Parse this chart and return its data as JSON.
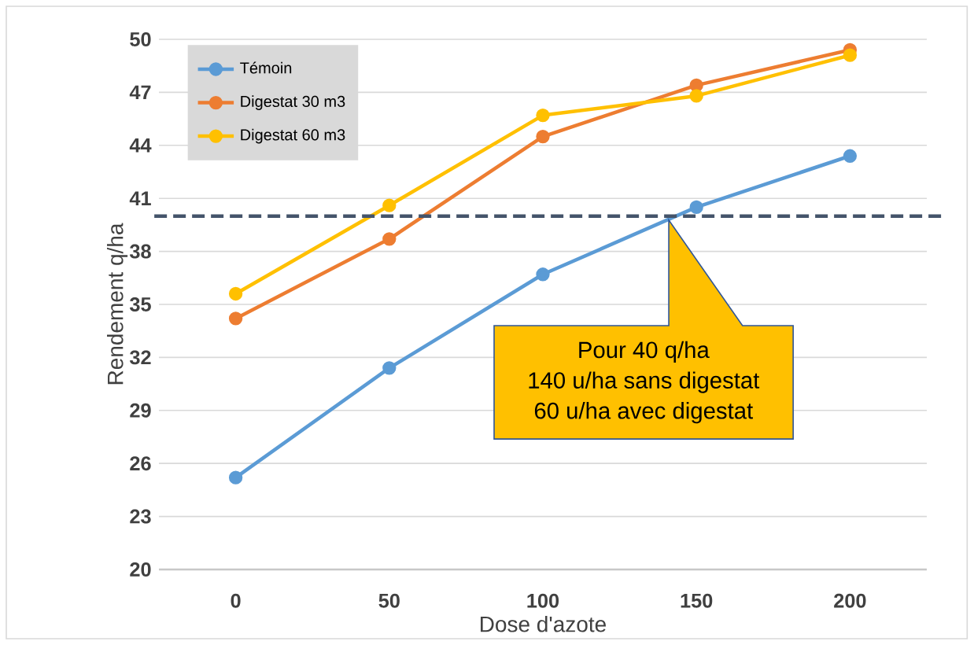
{
  "chart_data": {
    "type": "line",
    "xlabel": "Dose d'azote",
    "ylabel": "Rendement q/ha",
    "categories": [
      "0",
      "50",
      "100",
      "150",
      "200"
    ],
    "series": [
      {
        "name": "Témoin",
        "color": "#5b9bd5",
        "values": [
          25.2,
          31.4,
          36.7,
          40.5,
          43.4
        ]
      },
      {
        "name": "Digestat 30 m3",
        "color": "#ed7d31",
        "values": [
          34.2,
          38.7,
          44.5,
          47.4,
          49.4
        ]
      },
      {
        "name": "Digestat 60 m3",
        "color": "#ffc000",
        "values": [
          35.6,
          40.6,
          45.7,
          46.8,
          49.1
        ]
      }
    ],
    "ylim": [
      20,
      50
    ],
    "yticks": [
      20,
      23,
      26,
      29,
      32,
      35,
      38,
      41,
      44,
      47,
      50
    ],
    "ref_lines": [
      {
        "axis": "y",
        "value": 40,
        "color": "#44546a",
        "line_style": "dashed"
      }
    ],
    "annotations": [
      "Pour 40 q/ha",
      "140 u/ha sans digestat",
      "60 u/ha avec digestat"
    ],
    "grid": "y",
    "legend": "top left",
    "marker": "circle",
    "line_style": "solid"
  }
}
